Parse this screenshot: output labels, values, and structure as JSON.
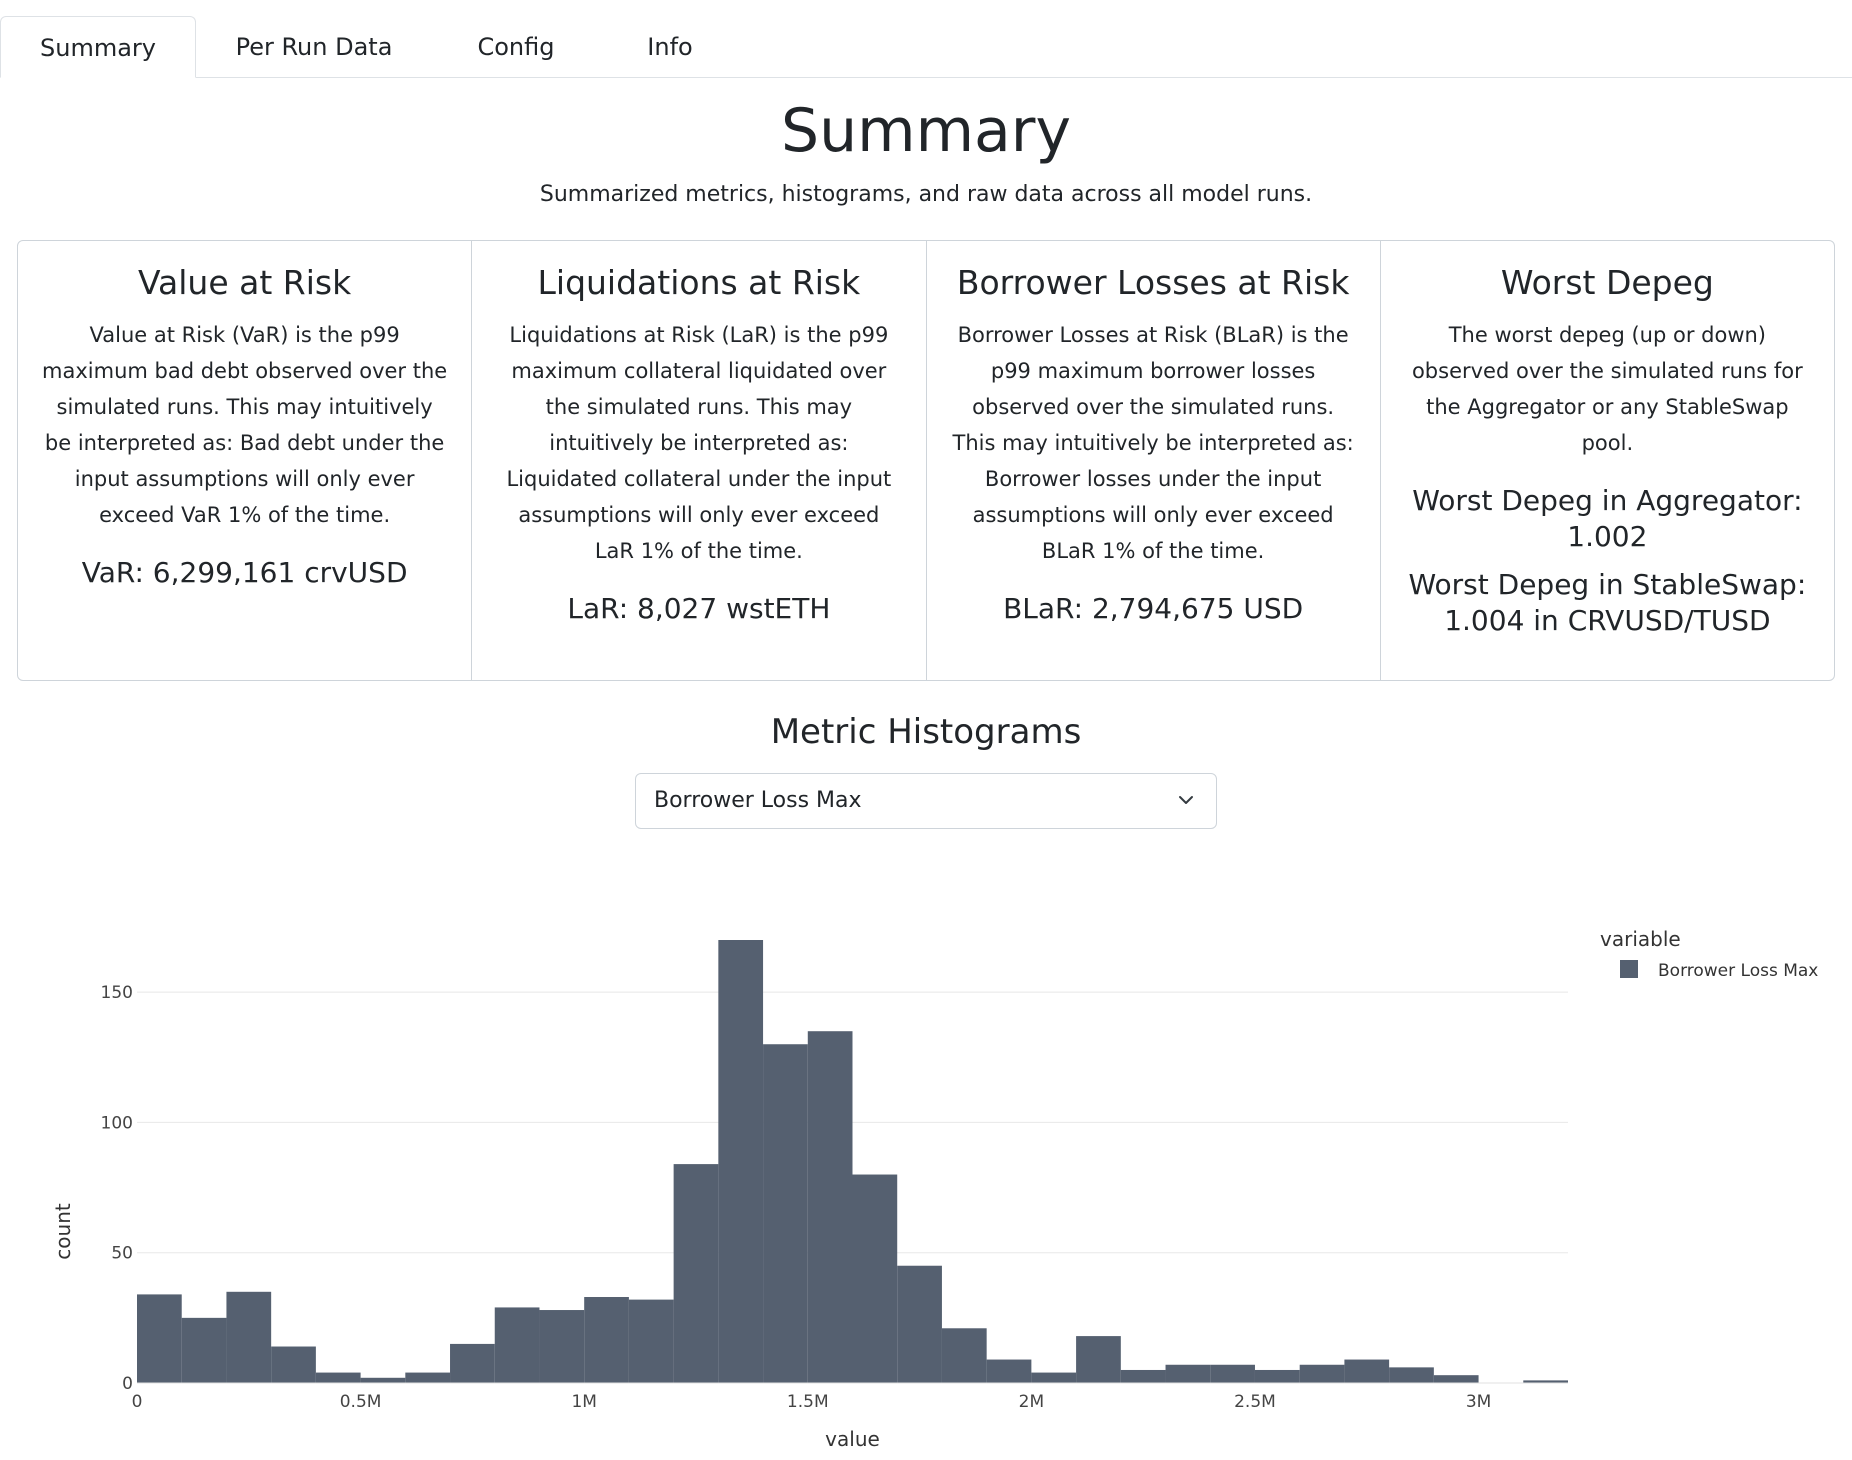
{
  "tabs": [
    {
      "label": "Summary",
      "active": true
    },
    {
      "label": "Per Run Data",
      "active": false
    },
    {
      "label": "Config",
      "active": false
    },
    {
      "label": "Info",
      "active": false
    }
  ],
  "header": {
    "title": "Summary",
    "subtitle": "Summarized metrics, histograms, and raw data across all model runs."
  },
  "cards": {
    "var": {
      "title": "Value at Risk",
      "text": "Value at Risk (VaR) is the p99 maximum bad debt observed over the simulated runs. This may intuitively be interpreted as: Bad debt under the input assumptions will only ever exceed VaR 1% of the time.",
      "value": "VaR: 6,299,161 crvUSD"
    },
    "lar": {
      "title": "Liquidations at Risk",
      "text": "Liquidations at Risk (LaR) is the p99 maximum collateral liquidated over the simulated runs. This may intuitively be interpreted as: Liquidated collateral under the input assumptions will only ever exceed LaR 1% of the time.",
      "value": "LaR: 8,027 wstETH"
    },
    "blar": {
      "title": "Borrower Losses at Risk",
      "text": "Borrower Losses at Risk (BLaR) is the p99 maximum borrower losses observed over the simulated runs. This may intuitively be interpreted as: Borrower losses under the input assumptions will only ever exceed BLaR 1% of the time.",
      "value": "BLaR: 2,794,675 USD"
    },
    "depeg": {
      "title": "Worst Depeg",
      "text": "The worst depeg (up or down) observed over the simulated runs for the Aggregator or any StableSwap pool.",
      "aggregator": "Worst Depeg in Aggregator: 1.002",
      "stableswap": "Worst Depeg in StableSwap: 1.004 in CRVUSD/TUSD"
    }
  },
  "histograms": {
    "title": "Metric Histograms",
    "selected_metric": "Borrower Loss Max"
  },
  "chart_data": {
    "type": "bar",
    "bin_width": 100000,
    "bin_start": 0,
    "values": [
      34,
      25,
      35,
      14,
      4,
      2,
      4,
      15,
      29,
      28,
      33,
      32,
      84,
      170,
      130,
      135,
      80,
      45,
      21,
      9,
      4,
      18,
      5,
      7,
      7,
      5,
      7,
      9,
      6,
      3,
      0,
      1
    ],
    "xlabel": "value",
    "ylabel": "count",
    "x_ticks": [
      {
        "value": 0,
        "label": "0"
      },
      {
        "value": 500000,
        "label": "0.5M"
      },
      {
        "value": 1000000,
        "label": "1M"
      },
      {
        "value": 1500000,
        "label": "1.5M"
      },
      {
        "value": 2000000,
        "label": "2M"
      },
      {
        "value": 2500000,
        "label": "2.5M"
      },
      {
        "value": 3000000,
        "label": "3M"
      }
    ],
    "y_ticks": [
      0,
      50,
      100,
      150
    ],
    "xlim": [
      0,
      3200000
    ],
    "ylim": [
      0,
      170
    ],
    "grid": true,
    "legend": {
      "title": "variable",
      "placement": "top-right"
    },
    "series": [
      {
        "name": "Borrower Loss Max",
        "color": "#556070"
      }
    ]
  }
}
